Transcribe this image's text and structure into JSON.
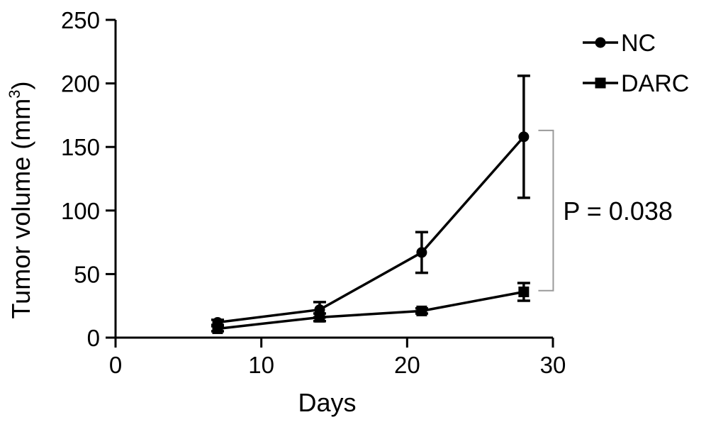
{
  "chart_data": {
    "type": "line",
    "xlabel": "Days",
    "ylabel": "Tumor volume (mm",
    "ylabel_sup": "3",
    "ylabel_close": ")",
    "xlim": [
      0,
      30
    ],
    "ylim": [
      0,
      250
    ],
    "xticks": [
      0,
      10,
      20,
      30
    ],
    "yticks": [
      0,
      50,
      100,
      150,
      200,
      250
    ],
    "series": [
      {
        "name": "NC",
        "marker": "circle",
        "x": [
          7,
          14,
          21,
          28
        ],
        "y": [
          12,
          22,
          67,
          158
        ],
        "err": [
          2,
          6,
          16,
          48
        ]
      },
      {
        "name": "DARC",
        "marker": "square",
        "x": [
          7,
          14,
          21,
          28
        ],
        "y": [
          7,
          16,
          21,
          36
        ],
        "err": [
          2,
          3,
          2,
          7
        ]
      }
    ],
    "annotation": {
      "text": "P = 0.038",
      "bracket_y": [
        37,
        163
      ],
      "bracket_x": 29
    },
    "legend_position": "top-right",
    "grid": false
  }
}
